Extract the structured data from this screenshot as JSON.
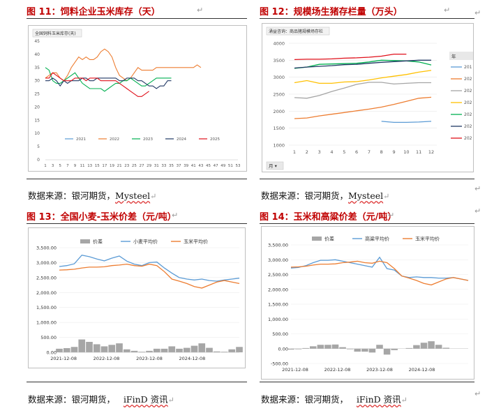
{
  "figures": [
    {
      "title": "图 11：饲料企业玉米库存（天）",
      "source_label": "数据来源：银河期货，",
      "source_brand": "Mysteel",
      "chart_data": {
        "type": "line",
        "title": "全国饲料玉米库存(天)",
        "x_ticks": [
          "1",
          "3",
          "5",
          "7",
          "9",
          "11",
          "13",
          "15",
          "17",
          "19",
          "21",
          "23",
          "25",
          "27",
          "29",
          "31",
          "33",
          "35",
          "37",
          "39",
          "41",
          "43",
          "45",
          "47",
          "49",
          "51",
          "53"
        ],
        "ylim": [
          0,
          45
        ],
        "y_ticks": [
          0,
          5,
          10,
          15,
          20,
          25,
          30,
          35,
          40,
          45
        ],
        "legend": [
          "2021",
          "2022",
          "2023",
          "2024",
          "2025"
        ],
        "colors": [
          "#5b9bd5",
          "#ed7d31",
          "#00b050",
          "#203864",
          "#e0101a"
        ],
        "series": [
          {
            "name": "2021",
            "week_start": 1,
            "values": []
          },
          {
            "name": "2022",
            "week_start": 1,
            "values": [
              31,
              32,
              33,
              33,
              31,
              30,
              32,
              35,
              37,
              39,
              38,
              39,
              38,
              38,
              39,
              41,
              42,
              41,
              39,
              35,
              32,
              31,
              30,
              31,
              33,
              35,
              34,
              34,
              34,
              34,
              35,
              35,
              35,
              35,
              35,
              35,
              35,
              35,
              35,
              35,
              35,
              36,
              35
            ]
          },
          {
            "name": "2023",
            "week_start": 1,
            "values": [
              35,
              34,
              30,
              29,
              29,
              30,
              31,
              32,
              33,
              31,
              29,
              28,
              27,
              27,
              27,
              27,
              26,
              27,
              28,
              29,
              29,
              30,
              30,
              31,
              30,
              29,
              28,
              28,
              29,
              30,
              31,
              31,
              31,
              31,
              31
            ]
          },
          {
            "name": "2024",
            "week_start": 1,
            "values": [
              30,
              30,
              31,
              30,
              28,
              30,
              29,
              30,
              30,
              30,
              31,
              31,
              30,
              30,
              31,
              31,
              31,
              31,
              31,
              31,
              30,
              30,
              31,
              31,
              31,
              30,
              30,
              29,
              28,
              28,
              27,
              28,
              28,
              30,
              30
            ]
          },
          {
            "name": "2025",
            "week_start": 1,
            "values": [
              31,
              31,
              33,
              32,
              31,
              30,
              30,
              30,
              31,
              31,
              31,
              30,
              31,
              31,
              31,
              30,
              30,
              30,
              30,
              30,
              29,
              28,
              27,
              26,
              25,
              24,
              24,
              25,
              26
            ]
          }
        ]
      }
    },
    {
      "title": "图 12：规模场生猪存栏量（万头）",
      "source_label": "数据来源：银河期货，",
      "source_brand": "Mysteel",
      "chart_data": {
        "type": "line",
        "title": "涌益咨询：商品猪规模场存栏",
        "categories": [
          "1",
          "2",
          "3",
          "4",
          "5",
          "6",
          "7",
          "8",
          "9",
          "10",
          "11",
          "12"
        ],
        "ylim": [
          1000,
          4000
        ],
        "y_ticks": [
          1000,
          1500,
          2000,
          2500,
          3000,
          3500,
          4000
        ],
        "x_axis_label": "月",
        "legend_title": "年",
        "legend": [
          "201",
          "202",
          "202",
          "202",
          "202",
          "202",
          "202"
        ],
        "colors": [
          "#5b9bd5",
          "#ed7d31",
          "#a5a5a5",
          "#ffc000",
          "#00b050",
          "#203864",
          "#e0101a"
        ],
        "series": [
          {
            "name": "201",
            "values": [
              null,
              null,
              null,
              null,
              null,
              null,
              null,
              1700,
              1670,
              1670,
              1680,
              1700
            ]
          },
          {
            "name": "202",
            "values": [
              1780,
              1800,
              1860,
              1910,
              1960,
              2010,
              2060,
              2120,
              2200,
              2290,
              2380,
              2410
            ]
          },
          {
            "name": "202",
            "values": [
              2400,
              2380,
              2460,
              2580,
              2680,
              2790,
              2850,
              2850,
              2800,
              2820,
              2840,
              2840
            ]
          },
          {
            "name": "202",
            "values": [
              2840,
              2900,
              2820,
              2820,
              2860,
              2870,
              2920,
              2980,
              3030,
              3080,
              3150,
              3200
            ]
          },
          {
            "name": "202",
            "values": [
              3260,
              3300,
              3380,
              3390,
              3400,
              3410,
              3450,
              3500,
              3490,
              3480,
              3450,
              3360
            ]
          },
          {
            "name": "202",
            "values": [
              3270,
              3300,
              3320,
              3340,
              3370,
              3380,
              3410,
              3440,
              3460,
              3480,
              3500,
              3500
            ]
          },
          {
            "name": "202",
            "values": [
              3520,
              3530,
              3530,
              3540,
              3560,
              3570,
              3590,
              3620,
              3680,
              3680,
              null,
              null
            ]
          }
        ]
      }
    },
    {
      "title": "图 13：全国小麦-玉米价差（元/吨）",
      "source_label": "数据来源：银河期货，",
      "source_brand": "iFinD 资讯",
      "chart_data": {
        "type": "line",
        "ylim": [
          0,
          3500
        ],
        "y_ticks": [
          "0.00",
          "500.00",
          "1,000.00",
          "1,500.00",
          "2,000.00",
          "2,500.00",
          "3,000.00",
          "3,500.00"
        ],
        "x_ticks": [
          "2021-12-08",
          "2022-12-08",
          "2023-12-08",
          "2024-12-08"
        ],
        "legend": [
          "价差",
          "小麦平均价",
          "玉米平均价"
        ],
        "colors": [
          "#a6a6a6",
          "#5b9bd5",
          "#ed7d31"
        ],
        "series": [
          {
            "name": "小麦平均价",
            "values": [
              2870,
              2900,
              2960,
              3250,
              3200,
              3120,
              3060,
              3150,
              3220,
              3050,
              2950,
              2900,
              3000,
              3020,
              2820,
              2650,
              2500,
              2450,
              2420,
              2450,
              2400,
              2380,
              2420,
              2450,
              2480
            ]
          },
          {
            "name": "玉米平均价",
            "values": [
              2750,
              2760,
              2780,
              2820,
              2850,
              2850,
              2860,
              2900,
              2920,
              2950,
              2900,
              2880,
              2950,
              2900,
              2700,
              2450,
              2380,
              2300,
              2200,
              2150,
              2250,
              2350,
              2400,
              2350,
              2300
            ]
          },
          {
            "name": "价差",
            "values": [
              120,
              140,
              180,
              430,
              350,
              270,
              200,
              250,
              300,
              100,
              50,
              20,
              50,
              120,
              120,
              200,
              120,
              150,
              220,
              300,
              150,
              30,
              20,
              100,
              180
            ]
          }
        ]
      }
    },
    {
      "title": "图 14：玉米和高粱价差（元/吨）",
      "source_label": "数据来源：银河期货，",
      "source_brand": "iFinD 资讯",
      "chart_data": {
        "type": "line",
        "ylim": [
          -500,
          3500
        ],
        "y_ticks": [
          "-500.00",
          "0.00",
          "500.00",
          "1,000.00",
          "1,500.00",
          "2,000.00",
          "2,500.00",
          "3,000.00",
          "3,500.00"
        ],
        "x_ticks": [
          "2021-12-08",
          "2022-12-08",
          "2023-12-08",
          "2024-12-08"
        ],
        "legend": [
          "价差",
          "高粱平均价",
          "玉米平均价"
        ],
        "colors": [
          "#a6a6a6",
          "#5b9bd5",
          "#ed7d31"
        ],
        "series": [
          {
            "name": "高粱平均价",
            "values": [
              2720,
              2740,
              2800,
              2900,
              2980,
              2980,
              3000,
              2950,
              2900,
              2850,
              2800,
              2750,
              3080,
              2700,
              2650,
              2450,
              2400,
              2420,
              2400,
              2400,
              2380,
              2380,
              2400,
              2350,
              2300
            ]
          },
          {
            "name": "玉米平均价",
            "values": [
              2750,
              2760,
              2780,
              2820,
              2850,
              2850,
              2860,
              2900,
              2920,
              2950,
              2900,
              2880,
              2950,
              2900,
              2700,
              2450,
              2380,
              2300,
              2200,
              2150,
              2250,
              2350,
              2400,
              2350,
              2300
            ]
          },
          {
            "name": "价差",
            "values": [
              -30,
              -20,
              20,
              80,
              130,
              130,
              140,
              50,
              -20,
              -100,
              -100,
              -130,
              130,
              -200,
              -50,
              0,
              20,
              120,
              200,
              250,
              130,
              30,
              0,
              0,
              0
            ]
          }
        ]
      }
    }
  ]
}
